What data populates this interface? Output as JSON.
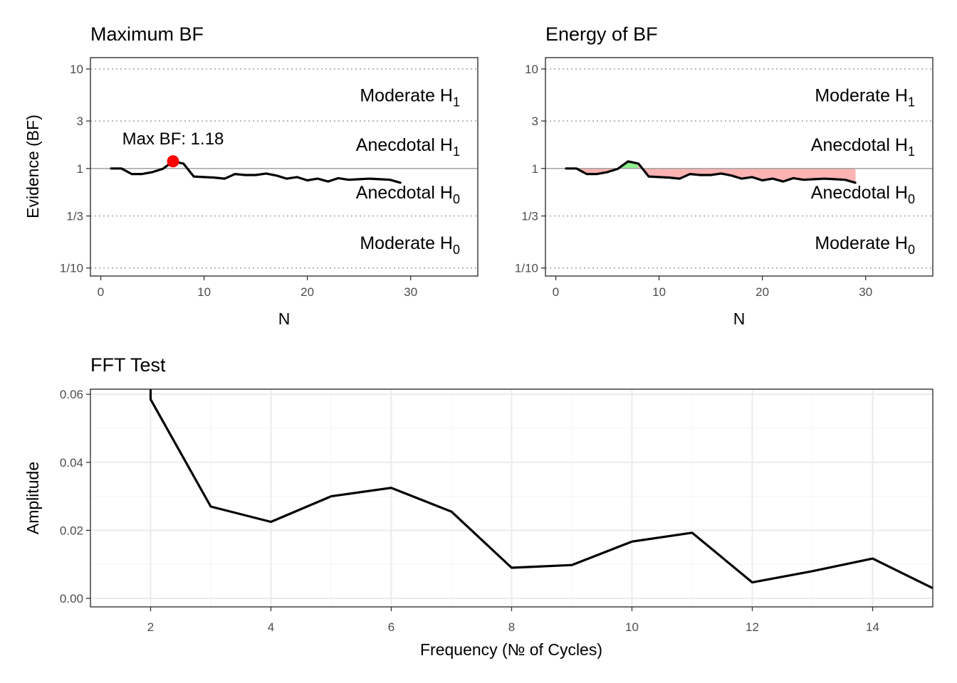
{
  "colors": {
    "line": "#000000",
    "max_point": "#ff0000",
    "area_positive": "#90ee90",
    "area_negative": "#ffb3b3",
    "grid_major": "#ebebeb",
    "grid_minor": "#f5f5f5",
    "bf_reference_line": "#9a9a9a",
    "evidence_dotted": "#9a9a9a",
    "panel_border": "#333333",
    "tick_text": "#4d4d4d"
  },
  "chart_data": [
    {
      "type": "line",
      "title": "Maximum BF",
      "xlabel": "N",
      "ylabel": "Evidence (BF)",
      "y_scale": "log",
      "xlim": [
        -1,
        36.5
      ],
      "ylim": [
        0.083,
        13
      ],
      "x_ticks": [
        0,
        10,
        20,
        30
      ],
      "y_ticks": [
        {
          "value": 10,
          "label": "10"
        },
        {
          "value": 3,
          "label": "3"
        },
        {
          "value": 1,
          "label": "1"
        },
        {
          "value": 0.3333,
          "label": "1/3"
        },
        {
          "value": 0.1,
          "label": "1/10"
        }
      ],
      "evidence_levels": [
        {
          "label": "Moderate H",
          "sub": "1",
          "at_bf": 5.5
        },
        {
          "label": "Anecdotal H",
          "sub": "1",
          "at_bf": 1.75
        },
        {
          "label": "Anecdotal H",
          "sub": "0",
          "at_bf": 0.58
        },
        {
          "label": "Moderate H",
          "sub": "0",
          "at_bf": 0.18
        }
      ],
      "x": [
        1,
        2,
        3,
        4,
        5,
        6,
        7,
        8,
        9,
        10,
        11,
        12,
        13,
        14,
        15,
        16,
        17,
        18,
        19,
        20,
        21,
        22,
        23,
        24,
        25,
        26,
        27,
        28,
        29
      ],
      "values": [
        1.0,
        1.0,
        0.88,
        0.88,
        0.92,
        0.99,
        1.18,
        1.12,
        0.83,
        0.82,
        0.81,
        0.79,
        0.88,
        0.86,
        0.86,
        0.89,
        0.85,
        0.79,
        0.82,
        0.76,
        0.79,
        0.74,
        0.8,
        0.77,
        0.78,
        0.79,
        0.78,
        0.77,
        0.72
      ],
      "max_point": {
        "x": 7,
        "value": 1.18,
        "label": "Max BF: 1.18"
      }
    },
    {
      "type": "area",
      "title": "Energy of BF",
      "xlabel": "N",
      "ylabel": "",
      "y_scale": "log",
      "xlim": [
        -1,
        36.5
      ],
      "ylim": [
        0.083,
        13
      ],
      "x_ticks": [
        0,
        10,
        20,
        30
      ],
      "y_ticks": [
        {
          "value": 10,
          "label": "10"
        },
        {
          "value": 3,
          "label": "3"
        },
        {
          "value": 1,
          "label": "1"
        },
        {
          "value": 0.3333,
          "label": "1/3"
        },
        {
          "value": 0.1,
          "label": "1/10"
        }
      ],
      "evidence_levels": [
        {
          "label": "Moderate H",
          "sub": "1",
          "at_bf": 5.5
        },
        {
          "label": "Anecdotal H",
          "sub": "1",
          "at_bf": 1.75
        },
        {
          "label": "Anecdotal H",
          "sub": "0",
          "at_bf": 0.58
        },
        {
          "label": "Moderate H",
          "sub": "0",
          "at_bf": 0.18
        }
      ],
      "x": [
        1,
        2,
        3,
        4,
        5,
        6,
        7,
        8,
        9,
        10,
        11,
        12,
        13,
        14,
        15,
        16,
        17,
        18,
        19,
        20,
        21,
        22,
        23,
        24,
        25,
        26,
        27,
        28,
        29
      ],
      "values": [
        1.0,
        1.0,
        0.88,
        0.88,
        0.92,
        0.99,
        1.18,
        1.12,
        0.83,
        0.82,
        0.81,
        0.79,
        0.88,
        0.86,
        0.86,
        0.89,
        0.85,
        0.79,
        0.82,
        0.76,
        0.79,
        0.74,
        0.8,
        0.77,
        0.78,
        0.79,
        0.78,
        0.77,
        0.72
      ]
    },
    {
      "type": "line",
      "title": "FFT Test",
      "xlabel": "Frequency (№ of Cycles)",
      "ylabel": "Amplitude",
      "xlim": [
        1,
        15
      ],
      "ylim": [
        -0.0025,
        0.0615
      ],
      "x_ticks": [
        2,
        4,
        6,
        8,
        10,
        12,
        14
      ],
      "x_minor_ticks": [
        1,
        3,
        5,
        7,
        9,
        11,
        13,
        15
      ],
      "y_ticks": [
        {
          "value": 0.0,
          "label": "0.00"
        },
        {
          "value": 0.02,
          "label": "0.02"
        },
        {
          "value": 0.04,
          "label": "0.04"
        },
        {
          "value": 0.06,
          "label": "0.06"
        }
      ],
      "y_minor_ticks": [
        0.01,
        0.03,
        0.05
      ],
      "x": [
        2,
        2,
        3,
        4,
        5,
        6,
        7,
        8,
        9,
        10,
        11,
        12,
        13,
        14,
        15
      ],
      "values": [
        0.0615,
        0.0585,
        0.027,
        0.0225,
        0.03,
        0.0325,
        0.0255,
        0.009,
        0.0098,
        0.0167,
        0.0193,
        0.0047,
        0.008,
        0.0117,
        0.003
      ]
    }
  ]
}
